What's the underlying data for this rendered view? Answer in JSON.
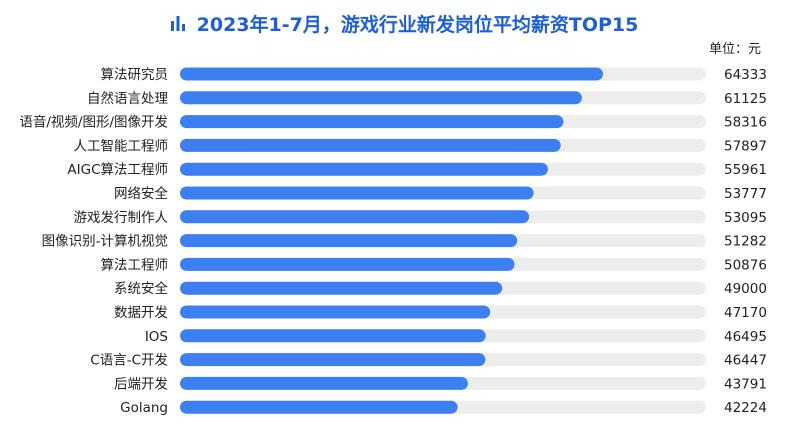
{
  "title": "2023年1-7月，游戏行业新发岗位平均薪资TOP15",
  "unit": "单位：元",
  "colors": {
    "bar": "#3d7ff0",
    "track": "#ededed",
    "title": "#1f5fd6"
  },
  "icon": "bar-chart-icon",
  "chart_data": {
    "type": "bar",
    "orientation": "horizontal",
    "title": "2023年1-7月，游戏行业新发岗位平均薪资TOP15",
    "unit": "元",
    "categories": [
      "算法研究员",
      "自然语言处理",
      "语音/视频/图形/图像开发",
      "人工智能工程师",
      "AIGC算法工程师",
      "网络安全",
      "游戏发行制作人",
      "图像识别-计算机视觉",
      "算法工程师",
      "系统安全",
      "数据开发",
      "IOS",
      "C语言-C开发",
      "后端开发",
      "Golang"
    ],
    "values": [
      64333,
      61125,
      58316,
      57897,
      55961,
      53777,
      53095,
      51282,
      50876,
      49000,
      47170,
      46495,
      46447,
      43791,
      42224
    ],
    "xlim": [
      0,
      80000
    ],
    "grid": false,
    "legend": "none"
  }
}
